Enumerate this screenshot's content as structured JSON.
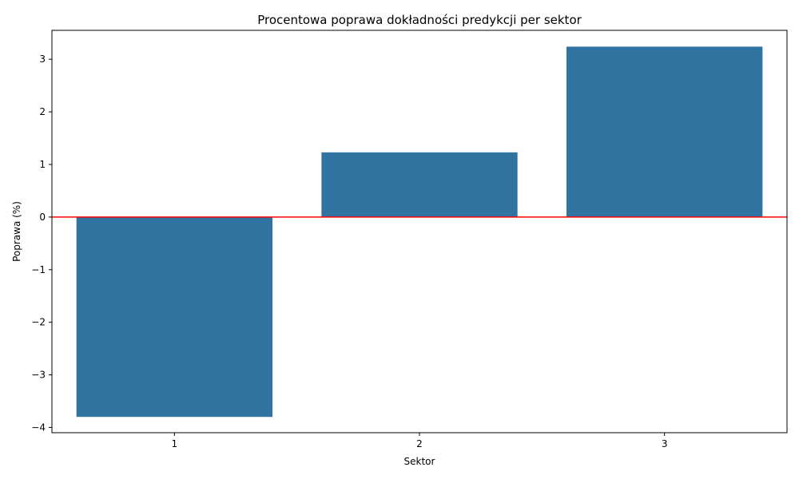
{
  "chart_data": {
    "type": "bar",
    "title": "Procentowa poprawa dokładności predykcji per sektor",
    "xlabel": "Sektor",
    "ylabel": "Poprawa (%)",
    "categories": [
      "1",
      "2",
      "3"
    ],
    "values": [
      -3.8,
      1.23,
      3.24
    ],
    "ylim": [
      -4.1,
      3.55
    ],
    "yticks": [
      -4,
      -3,
      -2,
      -1,
      0,
      1,
      2,
      3
    ],
    "ytick_labels": [
      "−4",
      "−3",
      "−2",
      "−1",
      "0",
      "1",
      "2",
      "3"
    ],
    "grid": false,
    "bar_color": "#3274a1",
    "reference_line": {
      "y": 0,
      "color": "#ff0000"
    }
  }
}
